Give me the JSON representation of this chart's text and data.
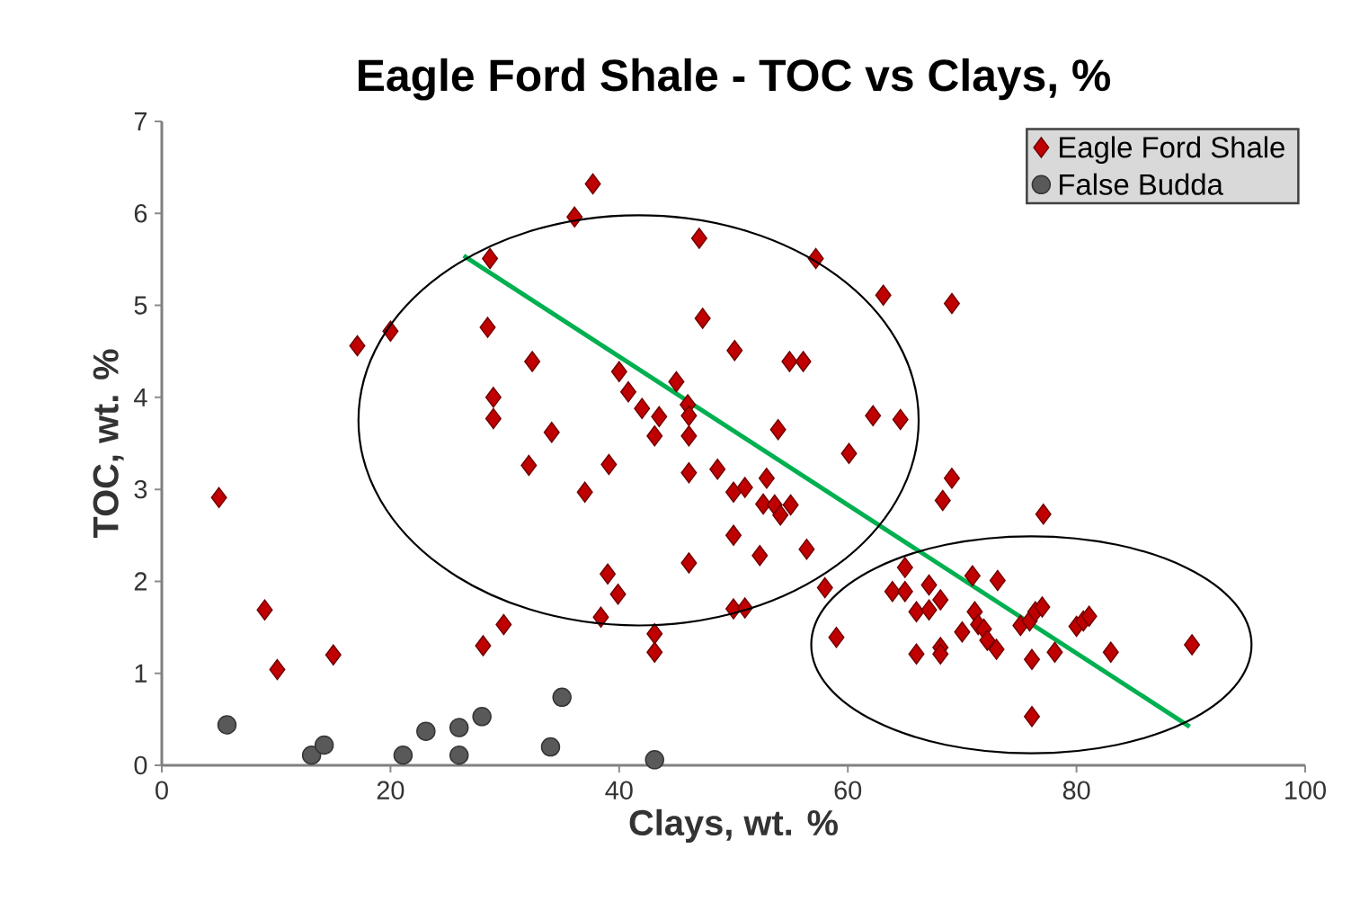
{
  "chart_data": {
    "type": "scatter",
    "title": "Eagle Ford Shale - TOC vs Clays, %",
    "xlabel": "Clays, wt. %",
    "ylabel": "TOC, wt. %",
    "xlim": [
      0,
      100
    ],
    "ylim": [
      0,
      7
    ],
    "xticks": [
      0,
      20,
      40,
      60,
      80,
      100
    ],
    "yticks": [
      0,
      1,
      2,
      3,
      4,
      5,
      6,
      7
    ],
    "legend": "top right",
    "series": [
      {
        "name": "Eagle Ford Shale",
        "color": "#c00000",
        "marker": "diamond",
        "x": [
          5.0,
          9.0,
          10.1,
          15.0,
          17.1,
          20.0,
          28.1,
          28.7,
          28.5,
          29.0,
          29.0,
          29.9,
          32.1,
          32.4,
          34.1,
          36.1,
          37.0,
          37.7,
          38.4,
          39.0,
          39.1,
          39.9,
          40.0,
          40.8,
          42.0,
          43.1,
          43.5,
          43.1,
          43.1,
          45.0,
          46.0,
          46.1,
          46.1,
          46.1,
          46.1,
          47.0,
          47.3,
          48.6,
          50.0,
          50.1,
          50.0,
          51.0,
          50.0,
          51.0,
          52.3,
          52.9,
          52.6,
          53.9,
          53.6,
          54.1,
          54.9,
          56.1,
          55.0,
          56.4,
          57.2,
          58.0,
          59.0,
          60.1,
          62.2,
          63.1,
          64.6,
          65.0,
          63.9,
          65.0,
          66.0,
          66.0,
          67.1,
          67.1,
          68.1,
          68.1,
          68.1,
          68.3,
          69.1,
          69.1,
          70.9,
          70.0,
          71.1,
          71.4,
          71.9,
          72.2,
          73.0,
          73.1,
          75.1,
          75.9,
          76.1,
          76.1,
          76.4,
          77.0,
          77.1,
          78.1,
          80.0,
          80.6,
          81.1,
          83.0,
          90.1
        ],
        "values": [
          2.91,
          1.69,
          1.04,
          1.2,
          4.56,
          4.72,
          1.3,
          5.51,
          4.76,
          4.0,
          3.77,
          1.53,
          3.26,
          4.39,
          3.62,
          5.96,
          2.97,
          6.32,
          1.61,
          2.08,
          3.27,
          1.86,
          4.28,
          4.06,
          3.88,
          3.58,
          3.79,
          1.43,
          1.23,
          4.17,
          3.92,
          3.8,
          3.58,
          3.18,
          2.2,
          5.73,
          4.86,
          3.22,
          2.5,
          4.51,
          2.97,
          3.02,
          1.7,
          1.71,
          2.28,
          3.12,
          2.84,
          3.65,
          2.83,
          2.72,
          4.39,
          4.39,
          2.83,
          2.35,
          5.51,
          1.93,
          1.39,
          3.39,
          3.8,
          5.11,
          3.76,
          2.15,
          1.89,
          1.89,
          1.21,
          1.67,
          1.96,
          1.69,
          1.8,
          1.28,
          1.21,
          2.88,
          3.12,
          5.02,
          2.06,
          1.45,
          1.67,
          1.53,
          1.48,
          1.36,
          1.26,
          2.01,
          1.52,
          1.57,
          1.15,
          0.53,
          1.67,
          1.72,
          2.73,
          1.23,
          1.51,
          1.57,
          1.62,
          1.23,
          1.31
        ]
      },
      {
        "name": "False Budda",
        "color": "#595959",
        "marker": "circle",
        "x": [
          5.7,
          13.1,
          14.2,
          21.1,
          23.1,
          26.0,
          26.0,
          28.0,
          34.0,
          35.0,
          43.1
        ],
        "values": [
          0.44,
          0.11,
          0.22,
          0.11,
          0.37,
          0.41,
          0.11,
          0.53,
          0.2,
          0.74,
          0.06
        ]
      },
      {
        "type": "line",
        "color": "#00b050",
        "marker": "none",
        "x": [
          26.4,
          89.9
        ],
        "values": [
          5.54,
          0.42
        ]
      }
    ]
  }
}
